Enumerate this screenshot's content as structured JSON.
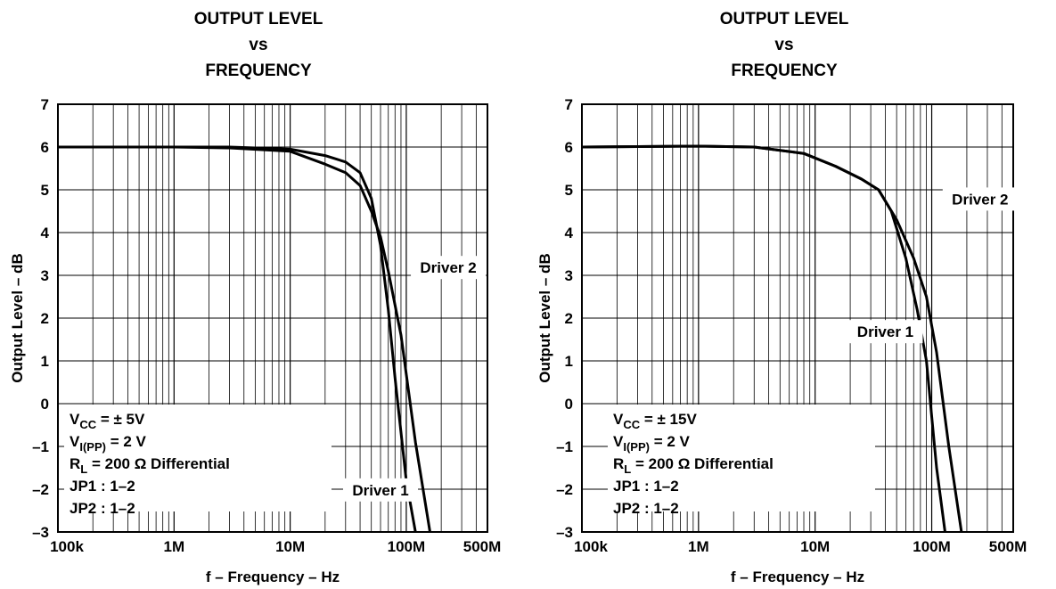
{
  "chart_data": [
    {
      "type": "line",
      "title": [
        "OUTPUT LEVEL",
        "vs",
        "FREQUENCY"
      ],
      "xlabel": "f – Frequency – Hz",
      "ylabel": "Output Level – dB",
      "x_scale": "log",
      "xlim": [
        100000,
        500000000
      ],
      "ylim": [
        -3,
        7
      ],
      "x_ticks": [
        100000,
        1000000,
        10000000,
        100000000,
        500000000
      ],
      "x_tick_labels": [
        "100k",
        "1M",
        "10M",
        "100M",
        "500M"
      ],
      "y_ticks": [
        7,
        6,
        5,
        4,
        3,
        2,
        1,
        0,
        -1,
        -2,
        -3
      ],
      "y_tick_labels": [
        "7",
        "6",
        "5",
        "4",
        "3",
        "2",
        "1",
        "0",
        "–1",
        "–2",
        "–3"
      ],
      "grid": true,
      "conditions": [
        {
          "main": "V",
          "sub": "CC",
          "rest": " = ± 5V"
        },
        {
          "main": "V",
          "sub": "I(PP)",
          "rest": " = 2 V"
        },
        {
          "main": "R",
          "sub": "L",
          "rest": " = 200 Ω Differential"
        },
        {
          "main": "JP1 : 1–2",
          "sub": "",
          "rest": ""
        },
        {
          "main": "JP2 : 1–2",
          "sub": "",
          "rest": ""
        }
      ],
      "series": [
        {
          "name": "Driver 1",
          "x": [
            100000,
            1000000,
            3000000,
            10000000,
            20000000,
            30000000,
            40000000,
            50000000,
            60000000,
            70000000,
            80000000,
            100000000,
            120000000
          ],
          "y": [
            6.0,
            6.0,
            6.0,
            5.95,
            5.8,
            5.65,
            5.4,
            4.8,
            3.7,
            2.2,
            0.6,
            -1.8,
            -3.0
          ]
        },
        {
          "name": "Driver 2",
          "x": [
            100000,
            1000000,
            3000000,
            10000000,
            20000000,
            30000000,
            40000000,
            50000000,
            60000000,
            70000000,
            90000000,
            120000000,
            160000000
          ],
          "y": [
            6.0,
            6.0,
            5.98,
            5.9,
            5.6,
            5.4,
            5.1,
            4.5,
            3.9,
            3.1,
            1.6,
            -0.9,
            -3.0
          ]
        }
      ],
      "series_labels": [
        {
          "text": "Driver 1",
          "at": [
            60000000,
            -2.1
          ]
        },
        {
          "text": "Driver 2",
          "at": [
            230000000,
            3.1
          ]
        }
      ]
    },
    {
      "type": "line",
      "title": [
        "OUTPUT LEVEL",
        "vs",
        "FREQUENCY"
      ],
      "xlabel": "f – Frequency – Hz",
      "ylabel": "Output Level – dB",
      "x_scale": "log",
      "xlim": [
        100000,
        500000000
      ],
      "ylim": [
        -3,
        7
      ],
      "x_ticks": [
        100000,
        1000000,
        10000000,
        100000000,
        500000000
      ],
      "x_tick_labels": [
        "100k",
        "1M",
        "10M",
        "100M",
        "500M"
      ],
      "y_ticks": [
        7,
        6,
        5,
        4,
        3,
        2,
        1,
        0,
        -1,
        -2,
        -3
      ],
      "y_tick_labels": [
        "7",
        "6",
        "5",
        "4",
        "3",
        "2",
        "1",
        "0",
        "–1",
        "–2",
        "–3"
      ],
      "grid": true,
      "conditions": [
        {
          "main": "V",
          "sub": "CC",
          "rest": " = ± 15V"
        },
        {
          "main": "V",
          "sub": "I(PP)",
          "rest": " = 2 V"
        },
        {
          "main": "R",
          "sub": "L",
          "rest": " = 200 Ω Differential"
        },
        {
          "main": "JP1 : 1–2",
          "sub": "",
          "rest": ""
        },
        {
          "main": "JP2 : 1–2",
          "sub": "",
          "rest": ""
        }
      ],
      "series": [
        {
          "name": "Driver 1",
          "x": [
            100000,
            1000000,
            3000000,
            8000000,
            15000000,
            25000000,
            35000000,
            45000000,
            60000000,
            75000000,
            90000000,
            110000000,
            130000000
          ],
          "y": [
            6.0,
            6.02,
            6.0,
            5.85,
            5.55,
            5.25,
            5.0,
            4.5,
            3.4,
            2.2,
            1.0,
            -1.5,
            -3.0
          ]
        },
        {
          "name": "Driver 2",
          "x": [
            100000,
            1000000,
            3000000,
            8000000,
            15000000,
            25000000,
            35000000,
            50000000,
            70000000,
            90000000,
            110000000,
            140000000,
            180000000
          ],
          "y": [
            6.0,
            6.02,
            6.0,
            5.85,
            5.55,
            5.25,
            5.0,
            4.3,
            3.4,
            2.5,
            1.2,
            -1.0,
            -3.0
          ]
        }
      ],
      "series_labels": [
        {
          "text": "Driver 1",
          "at": [
            40000000,
            1.6
          ]
        },
        {
          "text": "Driver 2",
          "at": [
            260000000,
            4.7
          ]
        }
      ]
    }
  ]
}
